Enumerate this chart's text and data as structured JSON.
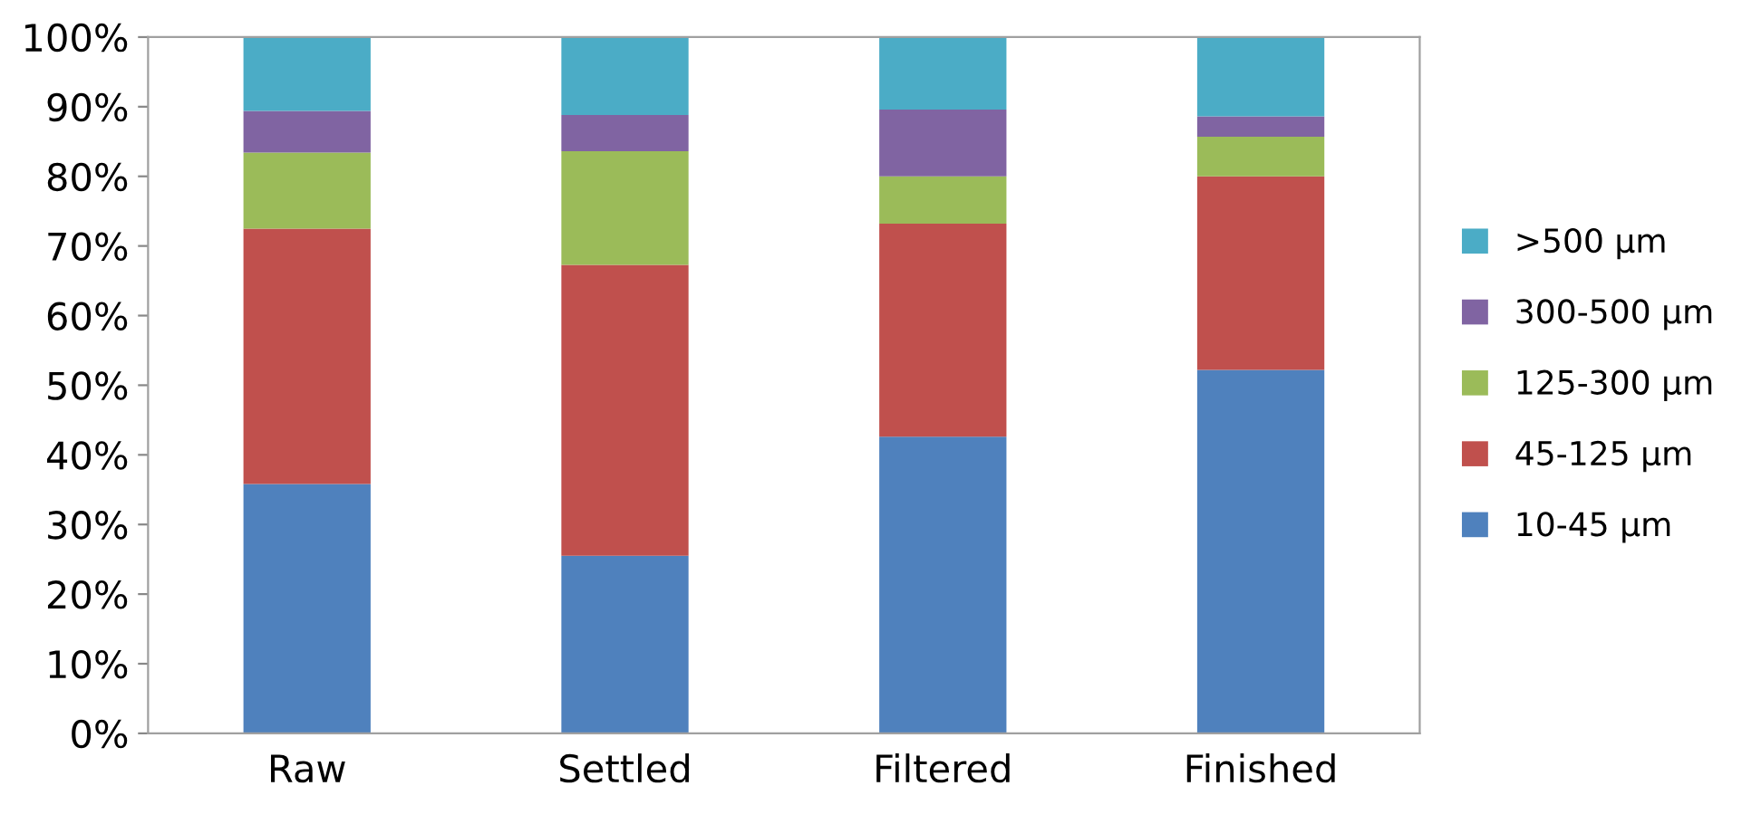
{
  "chart_data": {
    "type": "bar",
    "stacked": true,
    "categories": [
      "Raw",
      "Settled",
      "Filtered",
      "Finished"
    ],
    "series": [
      {
        "name": "10-45 µm",
        "color": "#4f81bd",
        "values": [
          35.8,
          25.5,
          42.6,
          52.2
        ]
      },
      {
        "name": "45-125 µm",
        "color": "#c0504d",
        "values": [
          36.7,
          41.8,
          30.6,
          27.8
        ]
      },
      {
        "name": "125-300 µm",
        "color": "#9bbb59",
        "values": [
          10.9,
          16.3,
          6.8,
          5.7
        ]
      },
      {
        "name": "300-500 µm",
        "color": "#8064a2",
        "values": [
          6.0,
          5.2,
          9.6,
          2.9
        ]
      },
      {
        "name": ">500 µm",
        "color": "#4bacc6",
        "values": [
          10.6,
          11.2,
          10.4,
          11.4
        ]
      }
    ],
    "ylim": [
      0,
      100
    ],
    "yticks": [
      {
        "value": 0,
        "label": "0%"
      },
      {
        "value": 10,
        "label": "10%"
      },
      {
        "value": 20,
        "label": "20%"
      },
      {
        "value": 30,
        "label": "30%"
      },
      {
        "value": 40,
        "label": "40%"
      },
      {
        "value": 50,
        "label": "50%"
      },
      {
        "value": 60,
        "label": "60%"
      },
      {
        "value": 70,
        "label": "70%"
      },
      {
        "value": 80,
        "label": "80%"
      },
      {
        "value": 90,
        "label": "90%"
      },
      {
        "value": 100,
        "label": "100%"
      }
    ],
    "grid": false,
    "legend": "right"
  }
}
